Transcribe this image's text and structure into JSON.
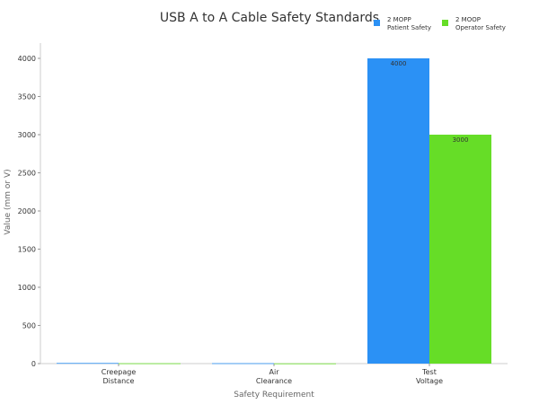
{
  "chart_data": {
    "type": "bar",
    "title": "USB A to A Cable Safety Standards",
    "xlabel": "Safety Requirement",
    "ylabel": "Value (mm or V)",
    "categories": [
      [
        "Creepage",
        "Distance"
      ],
      [
        "Air",
        "Clearance"
      ],
      [
        "Test",
        "Voltage"
      ]
    ],
    "ylim": [
      0,
      4200
    ],
    "yticks": [
      0,
      500,
      1000,
      1500,
      2000,
      2500,
      3000,
      3500,
      4000
    ],
    "grid": false,
    "legend_placement": "top-right",
    "series": [
      {
        "name": [
          "2 MOPP",
          "Patient Safety"
        ],
        "color": "#2b91f5",
        "values": [
          8,
          5,
          4000
        ],
        "labels": [
          "",
          "",
          "4000"
        ]
      },
      {
        "name": [
          "2 MOOP",
          "Operator Safety"
        ],
        "color": "#66dd27",
        "values": [
          4,
          2.5,
          3000
        ],
        "labels": [
          "",
          "",
          "3000"
        ]
      }
    ]
  }
}
